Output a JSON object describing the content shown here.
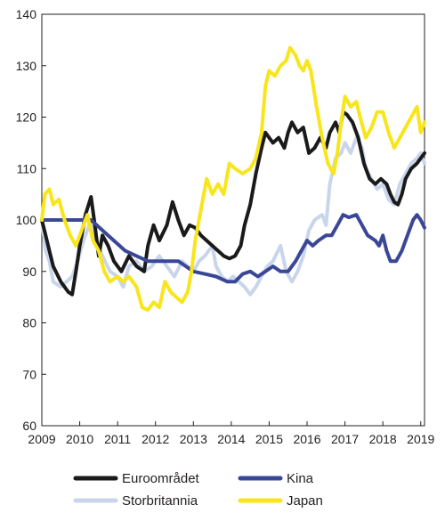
{
  "chart_data": {
    "type": "line",
    "title": "",
    "xlabel": "",
    "ylabel": "",
    "xlim": [
      2009,
      2019.1
    ],
    "ylim": [
      60,
      140
    ],
    "y_ticks": [
      60,
      70,
      80,
      90,
      100,
      110,
      120,
      130,
      140
    ],
    "x_tick_labels": [
      "2009",
      "2010",
      "2011",
      "2012",
      "2013",
      "2014",
      "2015",
      "2016",
      "2017",
      "2018",
      "2019"
    ],
    "x_tick_values": [
      2009,
      2010,
      2011,
      2012,
      2013,
      2014,
      2015,
      2016,
      2017,
      2018,
      2019
    ],
    "grid": false,
    "legend": "bottom",
    "series": [
      {
        "name": "Euroområdet",
        "color": "#1a1a1a",
        "points": [
          [
            2009.0,
            100
          ],
          [
            2009.1,
            97
          ],
          [
            2009.2,
            94
          ],
          [
            2009.3,
            91
          ],
          [
            2009.5,
            88
          ],
          [
            2009.7,
            86
          ],
          [
            2009.8,
            85.5
          ],
          [
            2009.9,
            90
          ],
          [
            2010.0,
            95
          ],
          [
            2010.15,
            101
          ],
          [
            2010.3,
            104.5
          ],
          [
            2010.4,
            99
          ],
          [
            2010.5,
            93
          ],
          [
            2010.6,
            97
          ],
          [
            2010.75,
            95
          ],
          [
            2010.9,
            92
          ],
          [
            2011.1,
            90
          ],
          [
            2011.3,
            93
          ],
          [
            2011.5,
            91
          ],
          [
            2011.7,
            90
          ],
          [
            2011.8,
            95
          ],
          [
            2011.95,
            99
          ],
          [
            2012.1,
            96
          ],
          [
            2012.3,
            99
          ],
          [
            2012.45,
            103.5
          ],
          [
            2012.6,
            100
          ],
          [
            2012.75,
            97
          ],
          [
            2012.9,
            99
          ],
          [
            2013.05,
            98.5
          ],
          [
            2013.2,
            97
          ],
          [
            2013.35,
            96
          ],
          [
            2013.5,
            95
          ],
          [
            2013.65,
            94
          ],
          [
            2013.8,
            93
          ],
          [
            2013.95,
            92.5
          ],
          [
            2014.1,
            93
          ],
          [
            2014.25,
            95
          ],
          [
            2014.35,
            99
          ],
          [
            2014.5,
            103
          ],
          [
            2014.65,
            109
          ],
          [
            2014.8,
            114
          ],
          [
            2014.9,
            117
          ],
          [
            2015.0,
            116
          ],
          [
            2015.1,
            115
          ],
          [
            2015.25,
            116
          ],
          [
            2015.4,
            114
          ],
          [
            2015.5,
            117
          ],
          [
            2015.6,
            119
          ],
          [
            2015.75,
            117
          ],
          [
            2015.9,
            118
          ],
          [
            2016.05,
            113
          ],
          [
            2016.2,
            114
          ],
          [
            2016.35,
            116
          ],
          [
            2016.5,
            114
          ],
          [
            2016.6,
            117
          ],
          [
            2016.75,
            119
          ],
          [
            2016.85,
            117
          ],
          [
            2016.95,
            121
          ],
          [
            2017.05,
            120.5
          ],
          [
            2017.2,
            119
          ],
          [
            2017.35,
            116
          ],
          [
            2017.5,
            111
          ],
          [
            2017.65,
            108
          ],
          [
            2017.8,
            107
          ],
          [
            2017.95,
            108
          ],
          [
            2018.1,
            107
          ],
          [
            2018.2,
            105
          ],
          [
            2018.3,
            103.5
          ],
          [
            2018.4,
            103
          ],
          [
            2018.5,
            105
          ],
          [
            2018.6,
            108
          ],
          [
            2018.75,
            110
          ],
          [
            2018.9,
            111
          ],
          [
            2019.0,
            112
          ],
          [
            2019.1,
            113
          ]
        ]
      },
      {
        "name": "Kina",
        "color": "#3a4797",
        "points": [
          [
            2009.0,
            100
          ],
          [
            2009.5,
            100
          ],
          [
            2010.0,
            100
          ],
          [
            2010.3,
            100
          ],
          [
            2010.6,
            98
          ],
          [
            2010.9,
            96
          ],
          [
            2011.2,
            94
          ],
          [
            2011.5,
            93
          ],
          [
            2011.8,
            92
          ],
          [
            2012.1,
            92
          ],
          [
            2012.4,
            92
          ],
          [
            2012.6,
            92
          ],
          [
            2012.8,
            91
          ],
          [
            2013.0,
            90
          ],
          [
            2013.3,
            89.5
          ],
          [
            2013.6,
            89
          ],
          [
            2013.9,
            88
          ],
          [
            2014.1,
            88
          ],
          [
            2014.3,
            89.5
          ],
          [
            2014.5,
            90
          ],
          [
            2014.7,
            89
          ],
          [
            2014.9,
            90
          ],
          [
            2015.1,
            91
          ],
          [
            2015.3,
            90
          ],
          [
            2015.5,
            90
          ],
          [
            2015.7,
            92
          ],
          [
            2015.85,
            94
          ],
          [
            2016.0,
            96
          ],
          [
            2016.15,
            95
          ],
          [
            2016.3,
            96
          ],
          [
            2016.5,
            97
          ],
          [
            2016.65,
            97
          ],
          [
            2016.8,
            99
          ],
          [
            2016.95,
            101
          ],
          [
            2017.1,
            100.5
          ],
          [
            2017.3,
            101
          ],
          [
            2017.45,
            99
          ],
          [
            2017.6,
            97
          ],
          [
            2017.8,
            96
          ],
          [
            2017.9,
            95
          ],
          [
            2018.0,
            97
          ],
          [
            2018.1,
            94
          ],
          [
            2018.2,
            92
          ],
          [
            2018.35,
            92
          ],
          [
            2018.5,
            94
          ],
          [
            2018.65,
            97
          ],
          [
            2018.8,
            100
          ],
          [
            2018.9,
            101
          ],
          [
            2019.0,
            100
          ],
          [
            2019.1,
            98.5
          ]
        ]
      },
      {
        "name": "Storbritannia",
        "color": "#c9d5eb",
        "points": [
          [
            2009.0,
            100
          ],
          [
            2009.1,
            94
          ],
          [
            2009.2,
            92
          ],
          [
            2009.3,
            88
          ],
          [
            2009.5,
            87
          ],
          [
            2009.65,
            88
          ],
          [
            2009.8,
            89
          ],
          [
            2009.95,
            92
          ],
          [
            2010.1,
            96
          ],
          [
            2010.3,
            100
          ],
          [
            2010.45,
            96
          ],
          [
            2010.6,
            93
          ],
          [
            2010.8,
            90
          ],
          [
            2011.0,
            89
          ],
          [
            2011.15,
            87
          ],
          [
            2011.3,
            91
          ],
          [
            2011.5,
            92
          ],
          [
            2011.7,
            90
          ],
          [
            2011.9,
            91
          ],
          [
            2012.1,
            93
          ],
          [
            2012.3,
            91
          ],
          [
            2012.5,
            89
          ],
          [
            2012.7,
            92
          ],
          [
            2012.85,
            91
          ],
          [
            2013.0,
            90
          ],
          [
            2013.15,
            92
          ],
          [
            2013.3,
            93
          ],
          [
            2013.5,
            95
          ],
          [
            2013.6,
            91
          ],
          [
            2013.75,
            89
          ],
          [
            2013.9,
            88
          ],
          [
            2014.05,
            89
          ],
          [
            2014.2,
            88
          ],
          [
            2014.35,
            87
          ],
          [
            2014.5,
            85.5
          ],
          [
            2014.65,
            87
          ],
          [
            2014.8,
            89
          ],
          [
            2014.95,
            91
          ],
          [
            2015.1,
            92
          ],
          [
            2015.3,
            95
          ],
          [
            2015.45,
            90
          ],
          [
            2015.6,
            88
          ],
          [
            2015.75,
            90
          ],
          [
            2015.9,
            93
          ],
          [
            2016.05,
            98
          ],
          [
            2016.2,
            100
          ],
          [
            2016.4,
            101
          ],
          [
            2016.5,
            99
          ],
          [
            2016.6,
            107
          ],
          [
            2016.75,
            112
          ],
          [
            2016.9,
            113
          ],
          [
            2017.0,
            115
          ],
          [
            2017.15,
            113
          ],
          [
            2017.3,
            116
          ],
          [
            2017.45,
            114
          ],
          [
            2017.55,
            110
          ],
          [
            2017.7,
            108
          ],
          [
            2017.85,
            106
          ],
          [
            2018.0,
            107
          ],
          [
            2018.15,
            104
          ],
          [
            2018.3,
            103
          ],
          [
            2018.45,
            107
          ],
          [
            2018.6,
            109
          ],
          [
            2018.75,
            111
          ],
          [
            2018.9,
            112
          ],
          [
            2019.0,
            113
          ],
          [
            2019.1,
            111
          ]
        ]
      },
      {
        "name": "Japan",
        "color": "#f9e51c",
        "points": [
          [
            2009.0,
            100
          ],
          [
            2009.08,
            105
          ],
          [
            2009.2,
            106
          ],
          [
            2009.3,
            103
          ],
          [
            2009.45,
            104
          ],
          [
            2009.6,
            100
          ],
          [
            2009.75,
            97
          ],
          [
            2009.9,
            95
          ],
          [
            2010.05,
            98
          ],
          [
            2010.2,
            101
          ],
          [
            2010.35,
            96
          ],
          [
            2010.5,
            94
          ],
          [
            2010.65,
            90
          ],
          [
            2010.8,
            88
          ],
          [
            2011.0,
            89
          ],
          [
            2011.15,
            88
          ],
          [
            2011.3,
            89
          ],
          [
            2011.5,
            87
          ],
          [
            2011.65,
            83
          ],
          [
            2011.8,
            82.5
          ],
          [
            2011.95,
            84
          ],
          [
            2012.1,
            83
          ],
          [
            2012.25,
            88
          ],
          [
            2012.4,
            86
          ],
          [
            2012.55,
            85
          ],
          [
            2012.7,
            84
          ],
          [
            2012.85,
            86
          ],
          [
            2012.95,
            90
          ],
          [
            2013.05,
            96
          ],
          [
            2013.2,
            102
          ],
          [
            2013.35,
            108
          ],
          [
            2013.5,
            105
          ],
          [
            2013.65,
            107
          ],
          [
            2013.8,
            105
          ],
          [
            2013.95,
            111
          ],
          [
            2014.1,
            110
          ],
          [
            2014.3,
            109
          ],
          [
            2014.5,
            110
          ],
          [
            2014.65,
            112
          ],
          [
            2014.8,
            117
          ],
          [
            2014.9,
            126
          ],
          [
            2015.0,
            129
          ],
          [
            2015.15,
            128
          ],
          [
            2015.3,
            130
          ],
          [
            2015.45,
            131
          ],
          [
            2015.55,
            133.5
          ],
          [
            2015.7,
            132
          ],
          [
            2015.8,
            130
          ],
          [
            2015.9,
            129
          ],
          [
            2016.0,
            131
          ],
          [
            2016.1,
            129
          ],
          [
            2016.25,
            122
          ],
          [
            2016.4,
            116
          ],
          [
            2016.55,
            111
          ],
          [
            2016.7,
            109
          ],
          [
            2016.8,
            113
          ],
          [
            2016.9,
            119
          ],
          [
            2017.0,
            124
          ],
          [
            2017.15,
            122
          ],
          [
            2017.3,
            123
          ],
          [
            2017.4,
            120
          ],
          [
            2017.55,
            116
          ],
          [
            2017.7,
            118
          ],
          [
            2017.85,
            121
          ],
          [
            2018.0,
            121
          ],
          [
            2018.15,
            117
          ],
          [
            2018.3,
            114
          ],
          [
            2018.45,
            116
          ],
          [
            2018.6,
            118
          ],
          [
            2018.75,
            120
          ],
          [
            2018.9,
            122
          ],
          [
            2019.0,
            117
          ],
          [
            2019.1,
            119
          ]
        ]
      }
    ]
  }
}
